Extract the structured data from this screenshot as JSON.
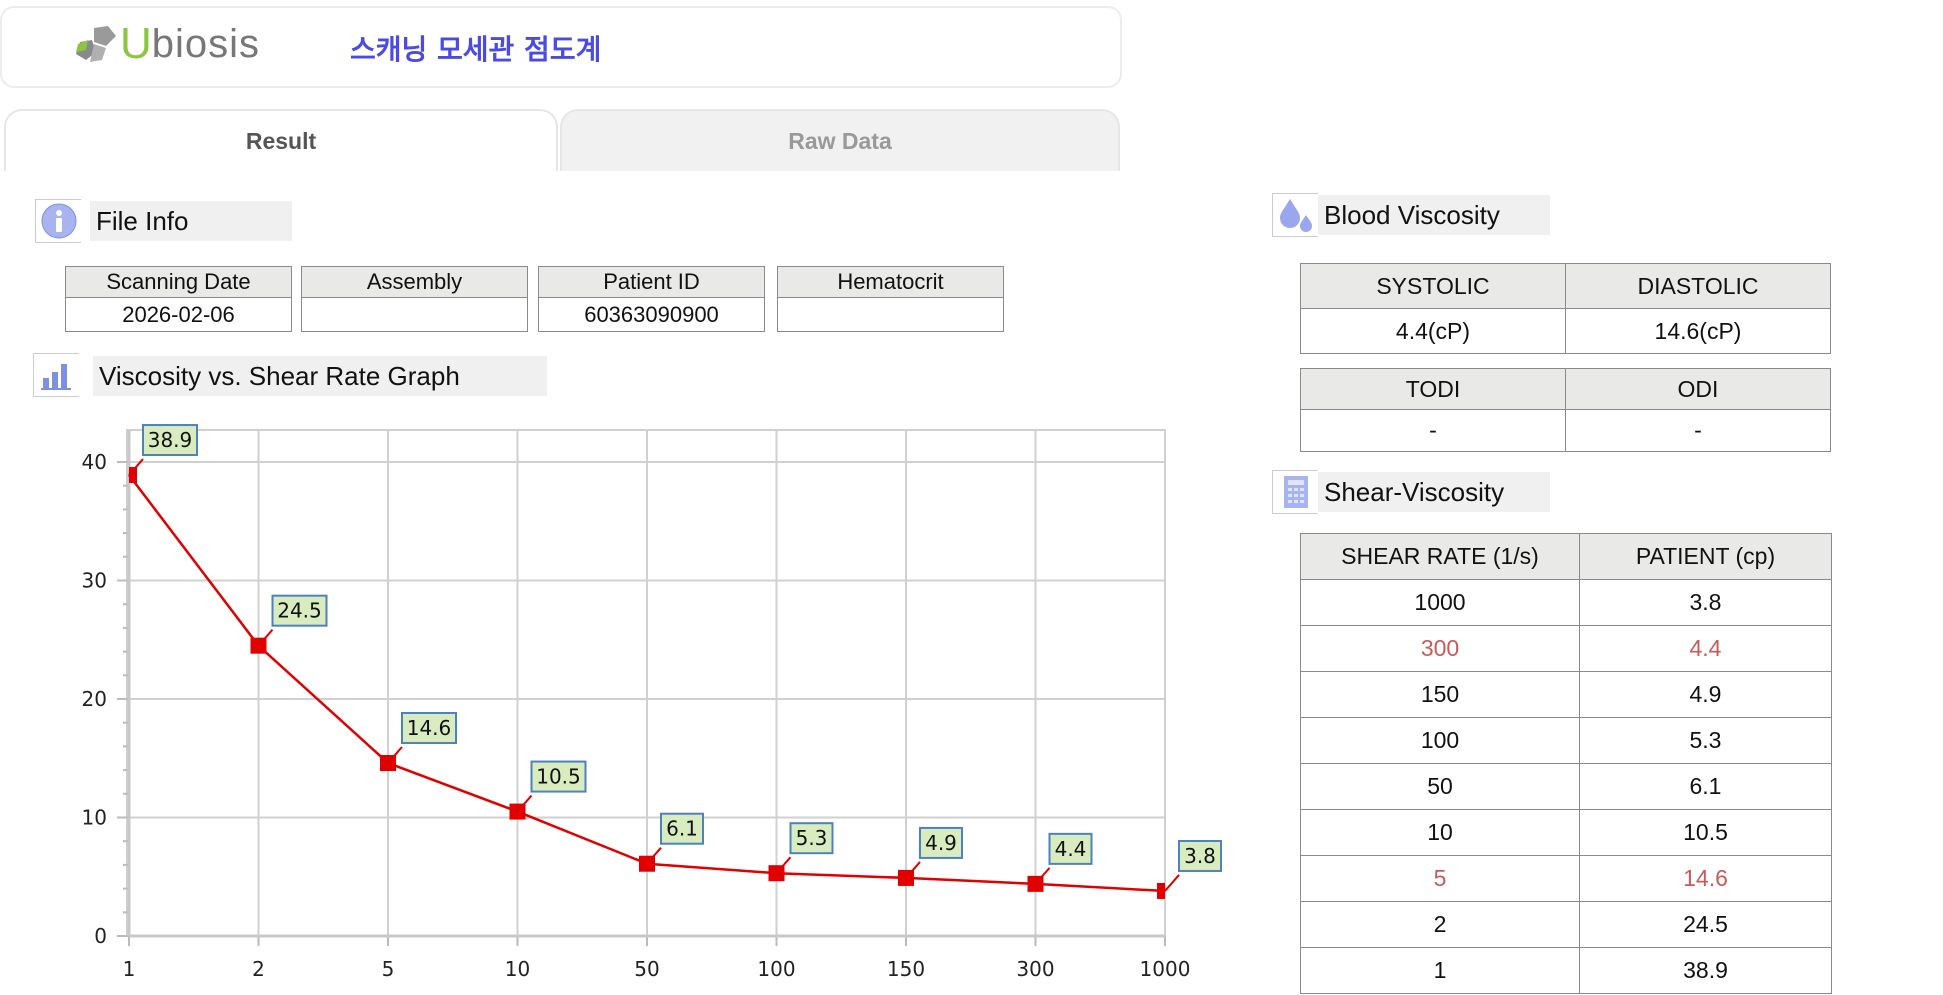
{
  "header": {
    "logo_text": "Ubiosis",
    "logo_first": "U",
    "logo_rest": "biosis",
    "app_title": "스캐닝 모세관 점도계"
  },
  "tabs": [
    {
      "label": "Result",
      "active": true
    },
    {
      "label": "Raw Data",
      "active": false
    }
  ],
  "file_info": {
    "title": "File Info",
    "icon": "info-icon",
    "columns": [
      "Scanning Date",
      "Assembly",
      "Patient ID",
      "Hematocrit"
    ],
    "values": [
      "2026-02-06",
      "",
      "60363090900",
      ""
    ]
  },
  "graph": {
    "title": "Viscosity vs. Shear Rate Graph",
    "icon": "bar-chart-icon"
  },
  "chart_data": {
    "type": "line",
    "categories": [
      "1",
      "2",
      "5",
      "10",
      "50",
      "100",
      "150",
      "300",
      "1000"
    ],
    "values": [
      38.9,
      24.5,
      14.6,
      10.5,
      6.1,
      5.3,
      4.9,
      4.4,
      3.8
    ],
    "data_labels": [
      "38.9",
      "24.5",
      "14.6",
      "10.5",
      "6.1",
      "5.3",
      "4.9",
      "4.4",
      "3.8"
    ],
    "yticks": [
      "0",
      "10",
      "20",
      "30",
      "40"
    ],
    "ylim": [
      0,
      42.7
    ],
    "grid": true,
    "line_color": "#e00000",
    "marker": "square",
    "label_fill": "#d8ecc0",
    "label_border": "#4f81bd"
  },
  "blood_viscosity": {
    "title": "Blood Viscosity",
    "icon": "blood-drops-icon",
    "table1": {
      "headers": [
        "SYSTOLIC",
        "DIASTOLIC"
      ],
      "values": [
        "4.4(cP)",
        "14.6(cP)"
      ]
    },
    "table2": {
      "headers": [
        "TODI",
        "ODI"
      ],
      "values": [
        "-",
        "-"
      ]
    }
  },
  "shear_viscosity": {
    "title": "Shear-Viscosity",
    "icon": "calculator-icon",
    "headers": [
      "SHEAR RATE (1/s)",
      "PATIENT (cp)"
    ],
    "highlight_color": "#c85a5a",
    "rows": [
      {
        "rate": "1000",
        "value": "3.8",
        "highlight": false
      },
      {
        "rate": "300",
        "value": "4.4",
        "highlight": true
      },
      {
        "rate": "150",
        "value": "4.9",
        "highlight": false
      },
      {
        "rate": "100",
        "value": "5.3",
        "highlight": false
      },
      {
        "rate": "50",
        "value": "6.1",
        "highlight": false
      },
      {
        "rate": "10",
        "value": "10.5",
        "highlight": false
      },
      {
        "rate": "5",
        "value": "14.6",
        "highlight": true
      },
      {
        "rate": "2",
        "value": "24.5",
        "highlight": false
      },
      {
        "rate": "1",
        "value": "38.9",
        "highlight": false
      }
    ]
  }
}
